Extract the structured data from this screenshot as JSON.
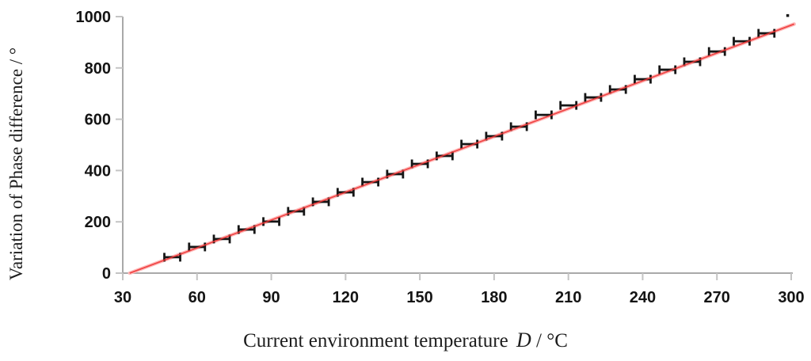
{
  "chart_data": {
    "type": "scatter",
    "title": "",
    "xlabel_prefix": "Current environment temperature",
    "xlabel_symbol": "D",
    "xlabel_suffix": " / °C",
    "ylabel": "Variation of Phase difference / °",
    "xlim": [
      30,
      300
    ],
    "ylim": [
      0,
      1000
    ],
    "x_ticks": [
      30,
      60,
      90,
      120,
      150,
      180,
      210,
      240,
      270,
      300
    ],
    "y_ticks": [
      0,
      200,
      400,
      600,
      800,
      1000
    ],
    "grid": false,
    "legend": false,
    "series": [
      {
        "name": "measured-points",
        "marker": "horizontal-errorbar",
        "x": [
          50,
          60,
          70,
          80,
          90,
          100,
          110,
          120,
          130,
          140,
          150,
          160,
          170,
          180,
          190,
          200,
          210,
          220,
          230,
          240,
          250,
          260,
          270,
          280,
          290
        ],
        "y": [
          62,
          102,
          133,
          170,
          201,
          241,
          278,
          315,
          355,
          386,
          426,
          457,
          503,
          534,
          571,
          617,
          654,
          685,
          716,
          756,
          793,
          824,
          864,
          904,
          935
        ]
      },
      {
        "name": "linear-fit-line",
        "marker": "line",
        "x": [
          32.8,
          301.2
        ],
        "y": [
          0,
          971
        ]
      }
    ],
    "stray_point": {
      "x": 298.5,
      "y": 1005
    },
    "colors": {
      "axis": "#a9a9a9",
      "tick": "#c4c4c4",
      "tick_label": "#141414",
      "axis_title": "#1c1c1c",
      "marker": "#161616",
      "fit_line": "#ee3434",
      "fit_halo": "#ffbcbc",
      "background": "#ffffff"
    }
  }
}
